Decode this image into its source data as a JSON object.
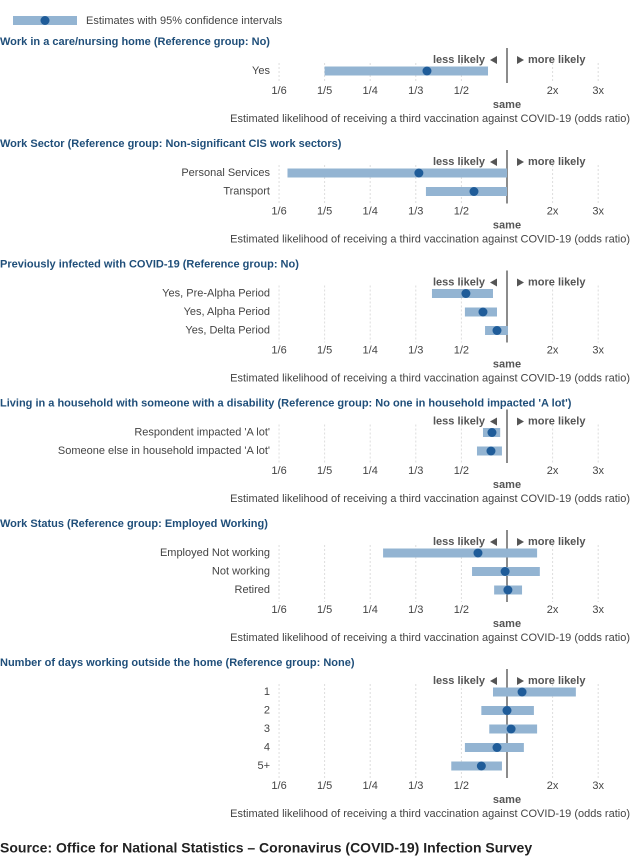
{
  "legend": "Estimates with 95% confidence intervals",
  "source": "Source: Office for National Statistics – Coronavirus (COVID-19) Infection Survey",
  "chart_data": [
    {
      "type": "forest",
      "title": "Work in a care/nursing home (Reference group: No)",
      "categories": [
        "Yes"
      ],
      "values": [
        0.363
      ],
      "lower": [
        0.2
      ],
      "upper": [
        0.706
      ],
      "color": "#93b4d2",
      "point_color": "#1f5c99",
      "scale": "reciprocal",
      "xlim": [
        0.1667,
        3
      ],
      "xticks": [
        {
          "value": 0.1667,
          "label": "1/6"
        },
        {
          "value": 0.2,
          "label": "1/5"
        },
        {
          "value": 0.25,
          "label": "1/4"
        },
        {
          "value": 0.3333,
          "label": "1/3"
        },
        {
          "value": 0.5,
          "label": "1/2"
        },
        {
          "value": 1,
          "label": "same"
        },
        {
          "value": 2,
          "label": "2x"
        },
        {
          "value": 3,
          "label": "3x"
        }
      ],
      "annotations": [
        "less likely",
        "more likely"
      ],
      "xlabel": "Estimated likelihood of receiving a third vaccination against COVID-19 (odds ratio)"
    },
    {
      "type": "forest",
      "title": "Work Sector (Reference group: Non-significant CIS work sectors)",
      "categories": [
        "Personal Services",
        "Transport"
      ],
      "values": [
        0.341,
        0.58
      ],
      "lower": [
        0.172,
        0.36
      ],
      "upper": [
        1.0,
        1.0
      ],
      "color": "#93b4d2",
      "point_color": "#1f5c99",
      "scale": "reciprocal",
      "xlim": [
        0.1667,
        3
      ],
      "xticks": [
        {
          "value": 0.1667,
          "label": "1/6"
        },
        {
          "value": 0.2,
          "label": "1/5"
        },
        {
          "value": 0.25,
          "label": "1/4"
        },
        {
          "value": 0.3333,
          "label": "1/3"
        },
        {
          "value": 0.5,
          "label": "1/2"
        },
        {
          "value": 1,
          "label": "same"
        },
        {
          "value": 2,
          "label": "2x"
        },
        {
          "value": 3,
          "label": "3x"
        }
      ],
      "annotations": [
        "less likely",
        "more likely"
      ],
      "xlabel": "Estimated likelihood of receiving a third vaccination against COVID-19 (odds ratio)"
    },
    {
      "type": "forest",
      "title": "Previously infected with COVID-19 (Reference group: No)",
      "categories": [
        "Yes, Pre-Alpha Period",
        "Yes, Alpha Period",
        "Yes, Delta Period"
      ],
      "values": [
        0.526,
        0.655,
        0.82
      ],
      "lower": [
        0.378,
        0.52,
        0.675
      ],
      "upper": [
        0.765,
        0.82,
        1.02
      ],
      "color": "#93b4d2",
      "point_color": "#1f5c99",
      "scale": "reciprocal",
      "xlim": [
        0.1667,
        3
      ],
      "xticks": [
        {
          "value": 0.1667,
          "label": "1/6"
        },
        {
          "value": 0.2,
          "label": "1/5"
        },
        {
          "value": 0.25,
          "label": "1/4"
        },
        {
          "value": 0.3333,
          "label": "1/3"
        },
        {
          "value": 0.5,
          "label": "1/2"
        },
        {
          "value": 1,
          "label": "same"
        },
        {
          "value": 2,
          "label": "2x"
        },
        {
          "value": 3,
          "label": "3x"
        }
      ],
      "annotations": [
        "less likely",
        "more likely"
      ],
      "xlabel": "Estimated likelihood of receiving a third vaccination against COVID-19 (odds ratio)"
    },
    {
      "type": "forest",
      "title": "Living in a household with someone with a disability (Reference group: No one in household impacted 'A lot')",
      "categories": [
        "Respondent impacted 'A lot'",
        "Someone else in household impacted 'A lot'"
      ],
      "values": [
        0.752,
        0.74
      ],
      "lower": [
        0.655,
        0.603
      ],
      "upper": [
        0.87,
        0.9
      ],
      "color": "#93b4d2",
      "point_color": "#1f5c99",
      "scale": "reciprocal",
      "xlim": [
        0.1667,
        3
      ],
      "xticks": [
        {
          "value": 0.1667,
          "label": "1/6"
        },
        {
          "value": 0.2,
          "label": "1/5"
        },
        {
          "value": 0.25,
          "label": "1/4"
        },
        {
          "value": 0.3333,
          "label": "1/3"
        },
        {
          "value": 0.5,
          "label": "1/2"
        },
        {
          "value": 1,
          "label": "same"
        },
        {
          "value": 2,
          "label": "2x"
        },
        {
          "value": 3,
          "label": "3x"
        }
      ],
      "annotations": [
        "less likely",
        "more likely"
      ],
      "xlabel": "Estimated likelihood of receiving a third vaccination against COVID-19 (odds ratio)"
    },
    {
      "type": "forest",
      "title": "Work Status (Reference group: Employed Working)",
      "categories": [
        "Employed Not working",
        "Not working",
        "Retired"
      ],
      "values": [
        0.611,
        0.96,
        1.02
      ],
      "lower": [
        0.269,
        0.566,
        0.78
      ],
      "upper": [
        1.66,
        1.72,
        1.33
      ],
      "color": "#93b4d2",
      "point_color": "#1f5c99",
      "scale": "reciprocal",
      "xlim": [
        0.1667,
        3
      ],
      "xticks": [
        {
          "value": 0.1667,
          "label": "1/6"
        },
        {
          "value": 0.2,
          "label": "1/5"
        },
        {
          "value": 0.25,
          "label": "1/4"
        },
        {
          "value": 0.3333,
          "label": "1/3"
        },
        {
          "value": 0.5,
          "label": "1/2"
        },
        {
          "value": 1,
          "label": "same"
        },
        {
          "value": 2,
          "label": "2x"
        },
        {
          "value": 3,
          "label": "3x"
        }
      ],
      "annotations": [
        "less likely",
        "more likely"
      ],
      "xlabel": "Estimated likelihood of receiving a third vaccination against COVID-19 (odds ratio)"
    },
    {
      "type": "forest",
      "title": "Number of days working outside the home (Reference group: None)",
      "categories": [
        "1",
        "2",
        "3",
        "4",
        "5+"
      ],
      "values": [
        1.33,
        1.0,
        1.09,
        0.82,
        0.64
      ],
      "lower": [
        0.765,
        0.64,
        0.72,
        0.52,
        0.45
      ],
      "upper": [
        2.51,
        1.59,
        1.66,
        1.37,
        0.9
      ],
      "color": "#93b4d2",
      "point_color": "#1f5c99",
      "scale": "reciprocal",
      "xlim": [
        0.1667,
        3
      ],
      "xticks": [
        {
          "value": 0.1667,
          "label": "1/6"
        },
        {
          "value": 0.2,
          "label": "1/5"
        },
        {
          "value": 0.25,
          "label": "1/4"
        },
        {
          "value": 0.3333,
          "label": "1/3"
        },
        {
          "value": 0.5,
          "label": "1/2"
        },
        {
          "value": 1,
          "label": "same"
        },
        {
          "value": 2,
          "label": "2x"
        },
        {
          "value": 3,
          "label": "3x"
        }
      ],
      "annotations": [
        "less likely",
        "more likely"
      ],
      "xlabel": "Estimated likelihood of receiving a third vaccination against COVID-19 (odds ratio)"
    }
  ]
}
